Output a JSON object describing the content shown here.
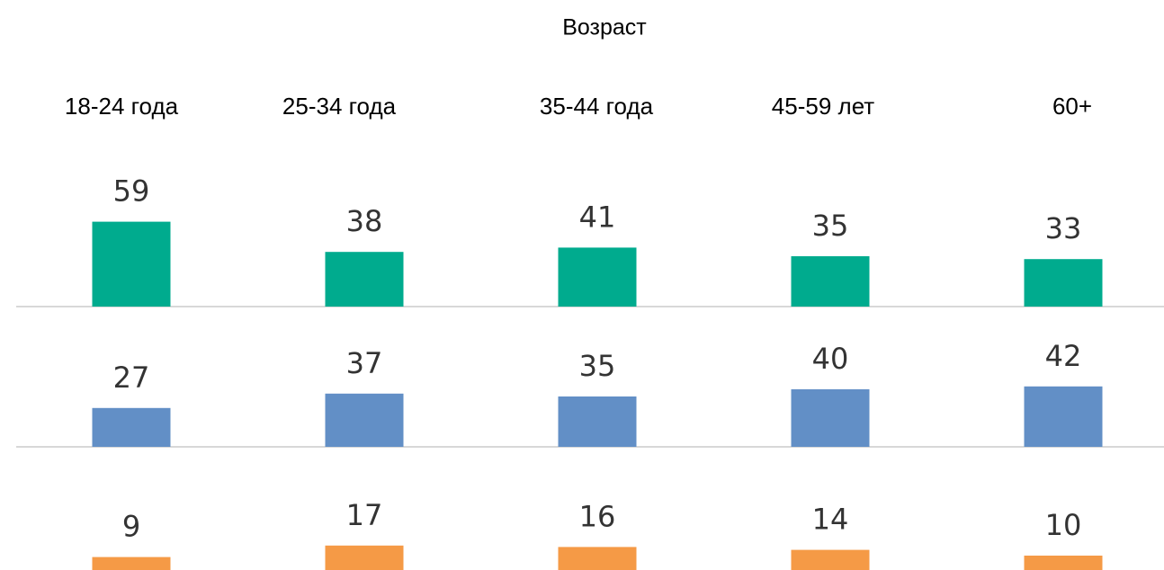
{
  "chart_data": {
    "type": "bar",
    "title": "Возраст",
    "categories": [
      "18-24 года",
      "25-34 года",
      "35-44 года",
      "45-59 лет",
      "60+"
    ],
    "series": [
      {
        "color": "#00ab8e",
        "values": [
          59,
          38,
          41,
          35,
          33
        ]
      },
      {
        "color": "#628fc6",
        "values": [
          27,
          37,
          35,
          40,
          42
        ]
      },
      {
        "color": "#f59a46",
        "values": [
          9,
          17,
          16,
          14,
          10
        ]
      }
    ],
    "ylim": [
      0,
      100
    ]
  }
}
